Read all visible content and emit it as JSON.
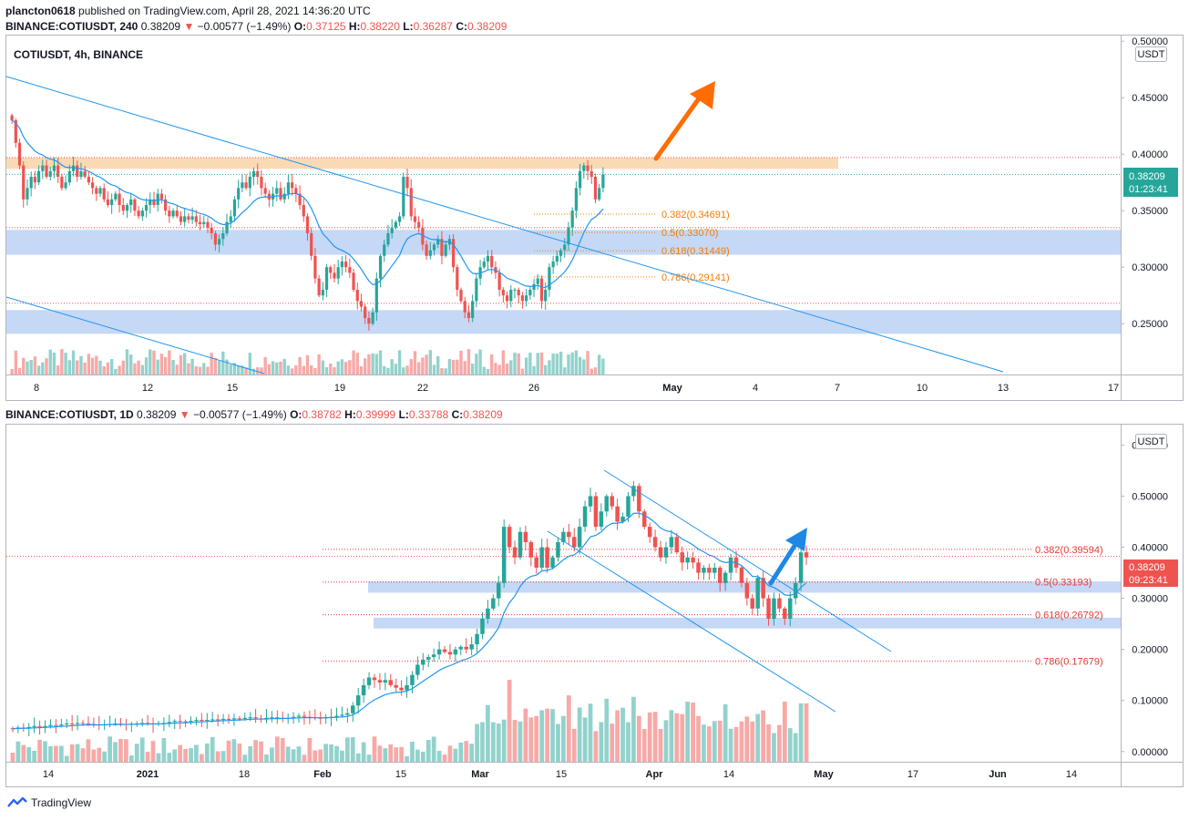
{
  "header": {
    "publisher": "plancton0618",
    "published_text": "published on TradingView.com, April 28, 2021 14:36:20 UTC",
    "brand": "TradingView"
  },
  "panels": [
    {
      "id": "4h",
      "symbol_line": {
        "symbol": "BINANCE:COTIUSDT, 240",
        "last": "0.38209",
        "arrow": "▼",
        "change": "−0.00577 (−1.49%)",
        "O": "0.37125",
        "H": "0.38220",
        "L": "0.36287",
        "C": "0.38209"
      },
      "title": "COTIUSDT, 4h, BINANCE",
      "currency": "USDT",
      "price_badge": {
        "price": "0.38209",
        "timer": "01:23:41",
        "color": "#26a69a"
      }
    },
    {
      "id": "1d",
      "symbol_line": {
        "symbol": "BINANCE:COTIUSDT, 1D",
        "last": "0.38209",
        "arrow": "▼",
        "change": "−0.00577 (−1.49%)",
        "O": "0.38782",
        "H": "0.39999",
        "L": "0.33788",
        "C": "0.38209"
      },
      "title": "",
      "currency": "USDT",
      "price_badge": {
        "price": "0.38209",
        "timer": "09:23:41",
        "color": "#ef5350"
      }
    }
  ],
  "colors": {
    "up": "#26a69a",
    "down": "#ef5350",
    "ma": "#2196f3",
    "trend": "#2196f3",
    "zone_blue": "#bbd1f5",
    "zone_orange": "#f9d3a8",
    "arrow_orange": "#ff6d00",
    "arrow_blue": "#1e88e5",
    "fib_4h": "#f57c00",
    "fib_1d": "#e53935"
  },
  "chart_data": [
    {
      "type": "candlestick",
      "title": "COTIUSDT, 4h, BINANCE",
      "ylabel": "USDT",
      "ylim": [
        0.205,
        0.505
      ],
      "yticks": [
        "0.50000",
        "0.45000",
        "0.40000",
        "0.35000",
        "0.30000",
        "0.25000"
      ],
      "xticks": [
        "8",
        "12",
        "15",
        "19",
        "22",
        "26",
        "May",
        "4",
        "7",
        "10",
        "13",
        "17"
      ],
      "x_range_days": [
        "2021-04-07",
        "2021-05-17"
      ],
      "candles_close": [
        0.43,
        0.41,
        0.39,
        0.36,
        0.37,
        0.38,
        0.375,
        0.385,
        0.39,
        0.38,
        0.385,
        0.39,
        0.38,
        0.37,
        0.375,
        0.385,
        0.39,
        0.38,
        0.385,
        0.38,
        0.375,
        0.37,
        0.365,
        0.37,
        0.36,
        0.355,
        0.36,
        0.365,
        0.355,
        0.35,
        0.355,
        0.36,
        0.35,
        0.345,
        0.35,
        0.355,
        0.36,
        0.355,
        0.365,
        0.36,
        0.35,
        0.345,
        0.35,
        0.345,
        0.34,
        0.345,
        0.342,
        0.345,
        0.34,
        0.338,
        0.34,
        0.335,
        0.33,
        0.32,
        0.325,
        0.33,
        0.34,
        0.345,
        0.36,
        0.37,
        0.375,
        0.37,
        0.38,
        0.385,
        0.38,
        0.37,
        0.365,
        0.36,
        0.365,
        0.37,
        0.36,
        0.365,
        0.375,
        0.37,
        0.365,
        0.355,
        0.345,
        0.33,
        0.31,
        0.29,
        0.275,
        0.28,
        0.3,
        0.295,
        0.29,
        0.3,
        0.305,
        0.3,
        0.295,
        0.28,
        0.27,
        0.265,
        0.255,
        0.25,
        0.26,
        0.29,
        0.31,
        0.32,
        0.33,
        0.335,
        0.34,
        0.345,
        0.38,
        0.37,
        0.345,
        0.34,
        0.335,
        0.32,
        0.31,
        0.315,
        0.32,
        0.325,
        0.31,
        0.32,
        0.325,
        0.3,
        0.28,
        0.27,
        0.26,
        0.255,
        0.27,
        0.29,
        0.3,
        0.305,
        0.31,
        0.3,
        0.295,
        0.28,
        0.275,
        0.27,
        0.28,
        0.28,
        0.275,
        0.27,
        0.275,
        0.28,
        0.285,
        0.29,
        0.27,
        0.28,
        0.3,
        0.305,
        0.31,
        0.315,
        0.32,
        0.335,
        0.35,
        0.37,
        0.385,
        0.39,
        0.385,
        0.38,
        0.36,
        0.37,
        0.382
      ],
      "ma_last": 0.34,
      "zones": [
        {
          "from": 0.387,
          "to": 0.397,
          "color": "orange"
        },
        {
          "from": 0.311,
          "to": 0.333,
          "color": "blue"
        },
        {
          "from": 0.241,
          "to": 0.262,
          "color": "blue"
        }
      ],
      "fib_levels": [
        {
          "label": "0.382(0.34691)",
          "value": 0.34691
        },
        {
          "label": "0.5(0.33070)",
          "value": 0.3307
        },
        {
          "label": "0.618(0.31449)",
          "value": 0.31449
        },
        {
          "label": "0.786(0.29141)",
          "value": 0.29141
        }
      ],
      "dotted_levels": [
        0.397,
        0.335,
        0.268
      ],
      "last_price": 0.38209
    },
    {
      "type": "candlestick",
      "ylabel": "USDT",
      "ylim": [
        -0.02,
        0.64
      ],
      "yticks": [
        "0.60000",
        "0.50000",
        "0.40000",
        "0.30000",
        "0.20000",
        "0.10000",
        "0.00000"
      ],
      "xticks": [
        "14",
        "2021",
        "18",
        "Feb",
        "15",
        "Mar",
        "15",
        "Apr",
        "14",
        "May",
        "17",
        "Jun",
        "14"
      ],
      "candles_close": [
        0.045,
        0.047,
        0.046,
        0.048,
        0.05,
        0.049,
        0.05,
        0.052,
        0.051,
        0.053,
        0.055,
        0.054,
        0.056,
        0.055,
        0.054,
        0.053,
        0.052,
        0.053,
        0.054,
        0.055,
        0.054,
        0.053,
        0.054,
        0.055,
        0.056,
        0.055,
        0.054,
        0.055,
        0.056,
        0.058,
        0.06,
        0.059,
        0.058,
        0.06,
        0.062,
        0.061,
        0.062,
        0.063,
        0.062,
        0.064,
        0.063,
        0.065,
        0.064,
        0.066,
        0.067,
        0.065,
        0.064,
        0.066,
        0.067,
        0.066,
        0.065,
        0.066,
        0.068,
        0.07,
        0.068,
        0.067,
        0.066,
        0.065,
        0.067,
        0.068,
        0.07,
        0.072,
        0.075,
        0.09,
        0.11,
        0.13,
        0.145,
        0.14,
        0.135,
        0.14,
        0.13,
        0.125,
        0.12,
        0.13,
        0.15,
        0.17,
        0.18,
        0.185,
        0.19,
        0.2,
        0.195,
        0.19,
        0.2,
        0.205,
        0.2,
        0.21,
        0.23,
        0.26,
        0.28,
        0.3,
        0.33,
        0.44,
        0.4,
        0.38,
        0.43,
        0.41,
        0.38,
        0.36,
        0.4,
        0.36,
        0.38,
        0.41,
        0.43,
        0.42,
        0.4,
        0.44,
        0.48,
        0.5,
        0.44,
        0.47,
        0.5,
        0.48,
        0.45,
        0.46,
        0.5,
        0.52,
        0.47,
        0.44,
        0.42,
        0.4,
        0.38,
        0.4,
        0.42,
        0.39,
        0.37,
        0.38,
        0.37,
        0.35,
        0.36,
        0.35,
        0.36,
        0.33,
        0.35,
        0.38,
        0.36,
        0.33,
        0.3,
        0.28,
        0.34,
        0.3,
        0.26,
        0.3,
        0.28,
        0.26,
        0.3,
        0.33,
        0.39,
        0.38
      ],
      "ma_last": 0.33,
      "zones": [
        {
          "from": 0.311,
          "to": 0.333,
          "color": "blue"
        },
        {
          "from": 0.241,
          "to": 0.262,
          "color": "blue"
        }
      ],
      "fib_levels": [
        {
          "label": "0.382(0.39594)",
          "value": 0.39594
        },
        {
          "label": "0.5(0.33193)",
          "value": 0.33193
        },
        {
          "label": "0.618(0.26792)",
          "value": 0.26792
        },
        {
          "label": "0.786(0.17679)",
          "value": 0.17679
        }
      ],
      "last_price": 0.38209
    }
  ]
}
